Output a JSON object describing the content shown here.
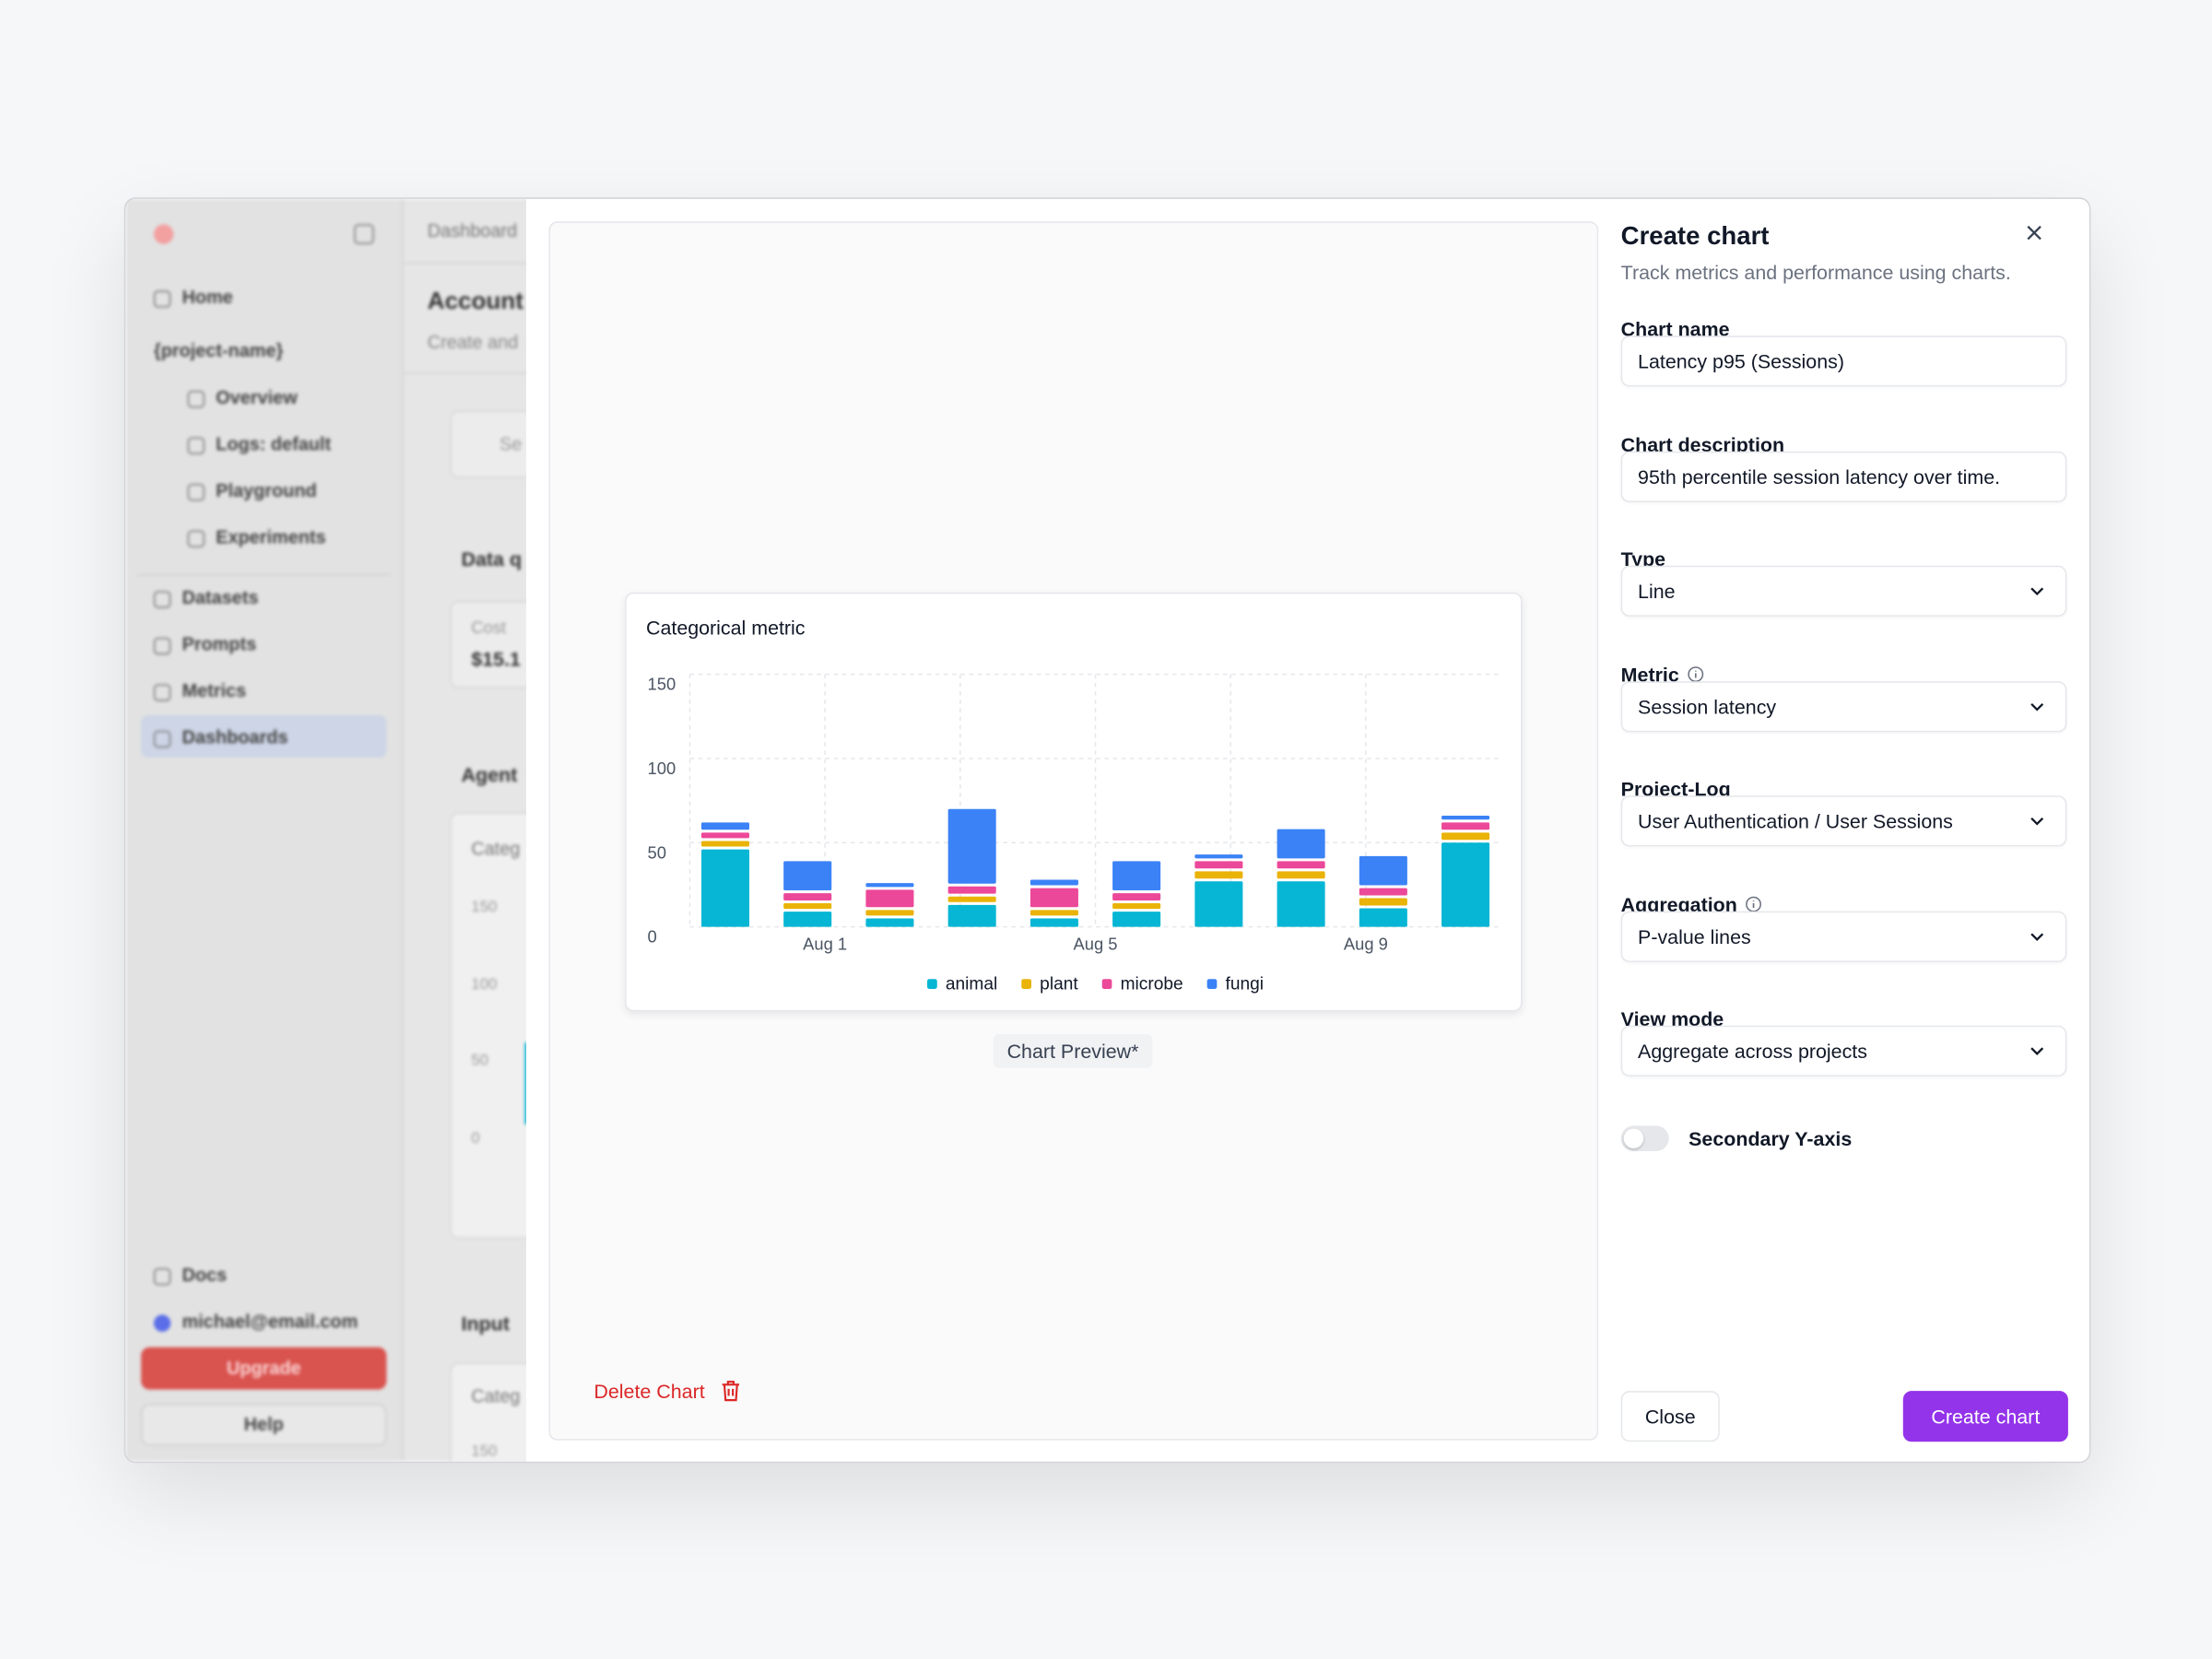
{
  "sidebar": {
    "items": [
      "Home",
      "{project-name}",
      "Overview",
      "Logs: default",
      "Playground",
      "Experiments",
      "Datasets",
      "Prompts",
      "Metrics",
      "Dashboards"
    ],
    "docs": "Docs",
    "user": "michael@email.com",
    "upgrade": "Upgrade",
    "help": "Help"
  },
  "background": {
    "breadcrumb": "Dashboard",
    "heading": "Account",
    "subheading": "Create and",
    "search": "Se",
    "section1": "Data q",
    "cost_label": "Cost",
    "cost_value": "$15.1",
    "section2": "Agent",
    "card_title": "Categ",
    "card_yticks": [
      "150",
      "100",
      "50",
      "0"
    ],
    "section3": "Input",
    "card2_title": "Categ",
    "card2_ytick": "150"
  },
  "modal": {
    "title": "Create chart",
    "subtitle": "Track metrics and performance using charts.",
    "fields": [
      {
        "label": "Chart name",
        "value": "Latency p95 (Sessions)"
      },
      {
        "label": "Chart description",
        "value": "95th percentile session latency over time."
      },
      {
        "label": "Type",
        "value": "Line"
      },
      {
        "label": "Metric",
        "value": "Session latency"
      },
      {
        "label": "Project-Log",
        "value": "User Authentication / User Sessions"
      },
      {
        "label": "Aggregation",
        "value": "P-value lines"
      },
      {
        "label": "View mode",
        "value": "Aggregate across projects"
      }
    ],
    "toggle": "Secondary Y-axis",
    "close": "Close",
    "submit": "Create chart",
    "delete": "Delete Chart",
    "preview_label": "Chart Preview*"
  },
  "chart_data": {
    "type": "bar",
    "stacked": true,
    "title": "Categorical metric",
    "categories": [
      null,
      null,
      null,
      null,
      null,
      null,
      null,
      null,
      null,
      null
    ],
    "xticks": [
      "Aug 1",
      null,
      "Aug 5",
      null,
      "Aug 9"
    ],
    "series": [
      {
        "name": "animal",
        "color": "#06b6d4",
        "values": [
          46,
          9,
          5,
          13,
          5,
          9,
          27,
          27,
          11,
          50
        ]
      },
      {
        "name": "plant",
        "color": "#eab308",
        "values": [
          5,
          5,
          5,
          5,
          5,
          5,
          6,
          6,
          6,
          6
        ]
      },
      {
        "name": "microbe",
        "color": "#ec4899",
        "values": [
          5,
          6,
          12,
          6,
          13,
          6,
          6,
          6,
          6,
          6
        ]
      },
      {
        "name": "fungi",
        "color": "#3b82f6",
        "values": [
          6,
          19,
          4,
          46,
          5,
          19,
          4,
          19,
          19,
          4
        ]
      }
    ],
    "ylim": [
      0,
      150
    ],
    "yticks": [
      0,
      50,
      100,
      150
    ],
    "grid": true,
    "legend": "bottom"
  }
}
